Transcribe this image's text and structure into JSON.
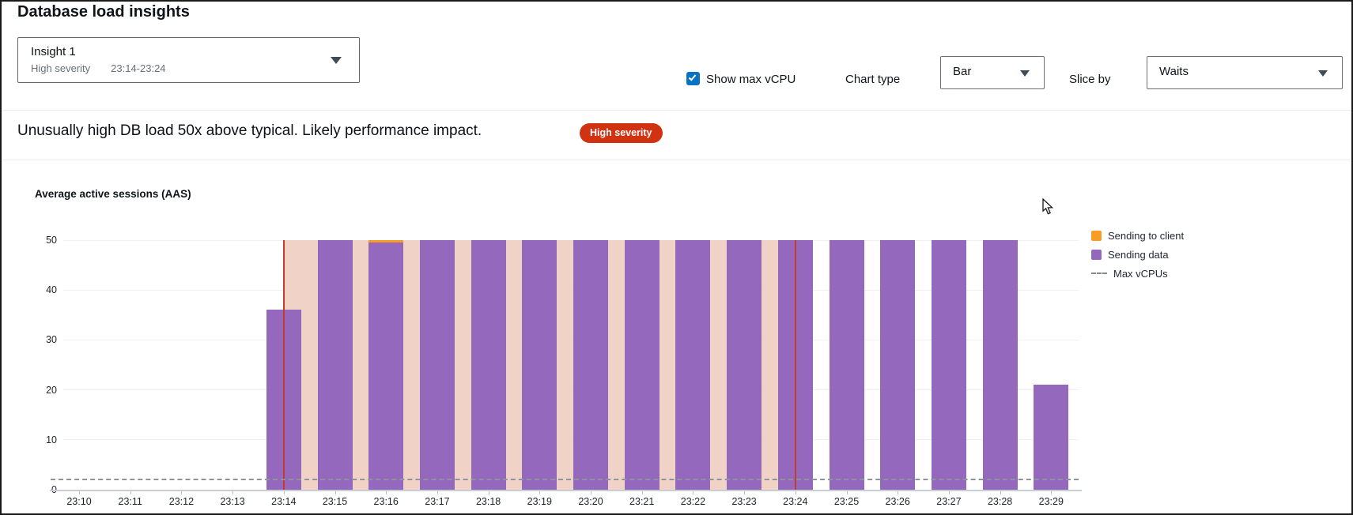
{
  "page": {
    "title": "Database load insights"
  },
  "insight_selector": {
    "name": "Insight 1",
    "severity": "High severity",
    "time_range": "23:14-23:24"
  },
  "controls": {
    "show_max_vcpu": {
      "label": "Show max vCPU",
      "checked": true
    },
    "chart_type": {
      "label": "Chart type",
      "value": "Bar"
    },
    "slice_by": {
      "label": "Slice by",
      "value": "Waits"
    }
  },
  "insight_message": {
    "text": "Unusually high DB load 50x above typical. Likely performance impact.",
    "badge": "High severity"
  },
  "chart_data": {
    "type": "bar",
    "title": "Average active sessions (AAS)",
    "categories": [
      "23:10",
      "23:11",
      "23:12",
      "23:13",
      "23:14",
      "23:15",
      "23:16",
      "23:17",
      "23:18",
      "23:19",
      "23:20",
      "23:21",
      "23:22",
      "23:23",
      "23:24",
      "23:25",
      "23:26",
      "23:27",
      "23:28",
      "23:29"
    ],
    "series": [
      {
        "name": "Sending to client",
        "color": "#f89c24",
        "values": [
          0,
          0,
          0,
          0,
          0,
          0,
          0.5,
          0,
          0,
          0,
          0,
          0,
          0,
          0,
          0,
          0,
          0,
          0,
          0,
          0
        ]
      },
      {
        "name": "Sending data",
        "color": "#9368bd",
        "values": [
          0,
          0,
          0,
          0,
          36,
          50,
          49.5,
          50,
          50,
          50,
          50,
          50,
          50,
          50,
          50,
          50,
          50,
          50,
          50,
          21
        ]
      }
    ],
    "max_vcpus": 2,
    "ylim": [
      0,
      50
    ],
    "yticks": [
      0,
      10,
      20,
      30,
      40,
      50
    ],
    "legend": [
      "Sending to client",
      "Sending data",
      "Max vCPUs"
    ],
    "legend_position": "right",
    "grid": true,
    "highlight": {
      "start": "23:14",
      "end": "23:24",
      "color": "#eecdc1",
      "boundary_color": "#c23b31"
    }
  },
  "colors": {
    "badge_red": "#d13212",
    "checkbox_blue": "#0a72c3",
    "bar_purple": "#9368bd",
    "bar_orange": "#f89c24",
    "highlight_pink": "#eecdc1",
    "boundary_red": "#c23b31"
  }
}
